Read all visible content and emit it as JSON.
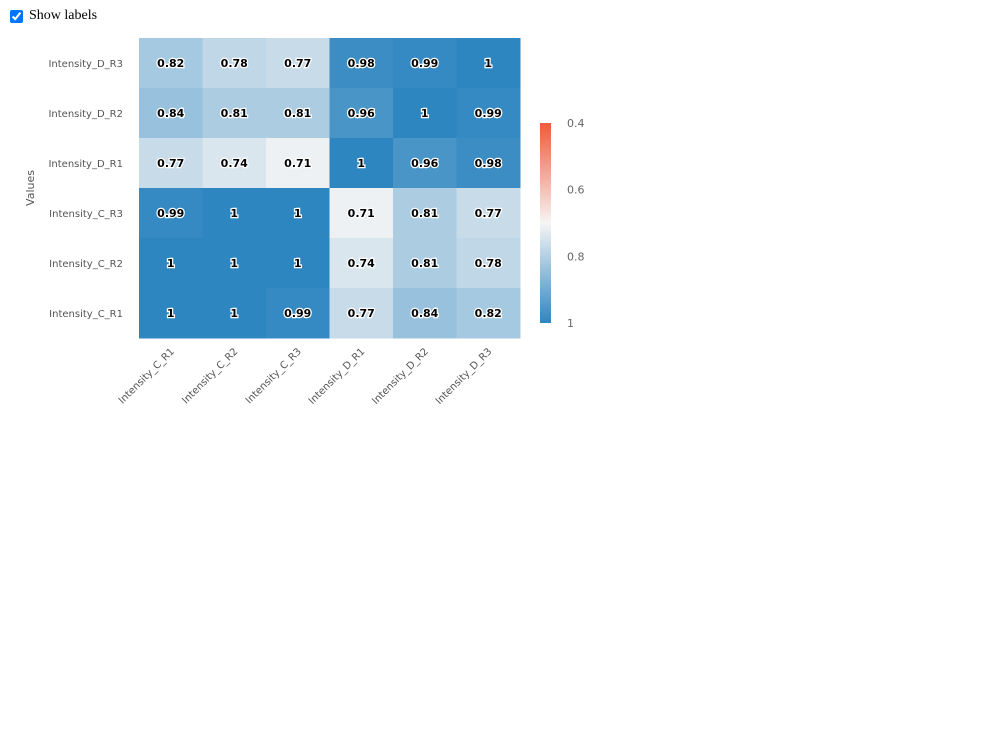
{
  "controls": {
    "show_labels_label": "Show labels",
    "show_labels_checked": true
  },
  "chart_data": {
    "type": "heatmap",
    "ylabel": "Values",
    "x_categories": [
      "Intensity_C_R1",
      "Intensity_C_R2",
      "Intensity_C_R3",
      "Intensity_D_R1",
      "Intensity_D_R2",
      "Intensity_D_R3"
    ],
    "y_categories": [
      "Intensity_D_R3",
      "Intensity_D_R2",
      "Intensity_D_R1",
      "Intensity_C_R3",
      "Intensity_C_R2",
      "Intensity_C_R1"
    ],
    "matrix": [
      [
        0.82,
        0.78,
        0.77,
        0.98,
        0.99,
        1
      ],
      [
        0.84,
        0.81,
        0.81,
        0.96,
        1,
        0.99
      ],
      [
        0.77,
        0.74,
        0.71,
        1,
        0.96,
        0.98
      ],
      [
        0.99,
        1,
        1,
        0.71,
        0.81,
        0.77
      ],
      [
        1,
        1,
        1,
        0.74,
        0.81,
        0.78
      ],
      [
        1,
        1,
        0.99,
        0.77,
        0.84,
        0.82
      ]
    ],
    "color_scale": {
      "range": [
        0.4,
        1
      ],
      "ticks": [
        0.4,
        0.6,
        0.8,
        1
      ],
      "tick_labels": [
        "0.4",
        "0.6",
        "0.8",
        "1"
      ],
      "stops": [
        {
          "value": 0.4,
          "color": "#f4583a"
        },
        {
          "value": 0.7,
          "color": "#f5f5f5"
        },
        {
          "value": 1.0,
          "color": "#2e86c1"
        }
      ]
    }
  }
}
